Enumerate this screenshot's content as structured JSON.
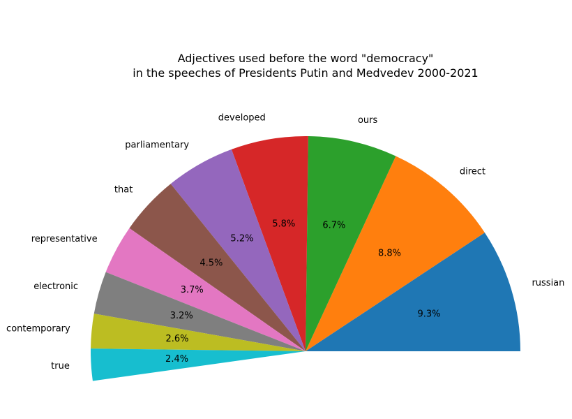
{
  "chart_data": {
    "type": "pie",
    "title_line1": "Adjectives used before the word \"democracy\"",
    "title_line2": "in the speeches of Presidents Putin and Medvedev 2000-2021",
    "categories": [
      "russian",
      "direct",
      "ours",
      "developed",
      "parliamentary",
      "that",
      "representative",
      "electronic",
      "contemporary",
      "true"
    ],
    "values": [
      9.3,
      8.8,
      6.7,
      5.8,
      5.2,
      4.5,
      3.7,
      3.2,
      2.6,
      2.4
    ],
    "labels_pct": [
      "9.3%",
      "8.8%",
      "6.7%",
      "5.8%",
      "5.2%",
      "4.5%",
      "3.7%",
      "3.2%",
      "2.6%",
      "2.4%"
    ],
    "colors": [
      "#1f77b4",
      "#ff7f0e",
      "#2ca02c",
      "#d62728",
      "#9467bd",
      "#8c564b",
      "#e377c2",
      "#7f7f7f",
      "#bcbd22",
      "#17becf"
    ],
    "total": 100,
    "start_angle_deg": 0,
    "direction": "counterclockwise"
  }
}
